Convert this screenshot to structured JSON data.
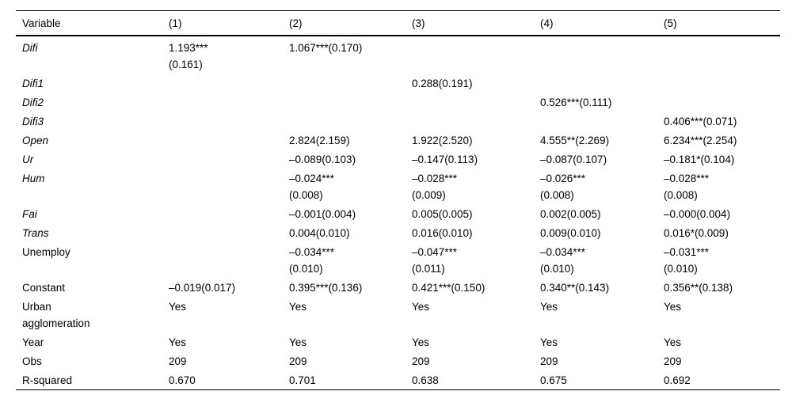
{
  "colors": {
    "text": "#000000",
    "background": "#ffffff",
    "rule": "#000000"
  },
  "table": {
    "columns": [
      "Variable",
      "(1)",
      "(2)",
      "(3)",
      "(4)",
      "(5)"
    ],
    "rows": [
      {
        "variable": "Difi",
        "italic": true,
        "cells": [
          "1.193***\n(0.161)",
          "1.067***(0.170)",
          "",
          "",
          ""
        ]
      },
      {
        "variable": "Difi1",
        "italic": true,
        "cells": [
          "",
          "",
          "0.288(0.191)",
          "",
          ""
        ]
      },
      {
        "variable": "Difi2",
        "italic": true,
        "cells": [
          "",
          "",
          "",
          "0.526***(0.111)",
          ""
        ]
      },
      {
        "variable": "Difi3",
        "italic": true,
        "cells": [
          "",
          "",
          "",
          "",
          "0.406***(0.071)"
        ]
      },
      {
        "variable": "Open",
        "italic": true,
        "cells": [
          "",
          "2.824(2.159)",
          "1.922(2.520)",
          "4.555**(2.269)",
          "6.234***(2.254)"
        ]
      },
      {
        "variable": "Ur",
        "italic": true,
        "cells": [
          "",
          "–0.089(0.103)",
          "–0.147(0.113)",
          "–0.087(0.107)",
          "–0.181*(0.104)"
        ]
      },
      {
        "variable": "Hum",
        "italic": true,
        "cells": [
          "",
          "–0.024***\n(0.008)",
          "–0.028***\n(0.009)",
          "–0.026***\n(0.008)",
          "–0.028***\n(0.008)"
        ]
      },
      {
        "variable": "Fai",
        "italic": true,
        "cells": [
          "",
          "–0.001(0.004)",
          "0.005(0.005)",
          "0.002(0.005)",
          "–0.000(0.004)"
        ]
      },
      {
        "variable": "Trans",
        "italic": true,
        "cells": [
          "",
          "0.004(0.010)",
          "0.016(0.010)",
          "0.009(0.010)",
          "0.016*(0.009)"
        ]
      },
      {
        "variable": "Unemploy",
        "italic": false,
        "cells": [
          "",
          "–0.034***\n(0.010)",
          "–0.047***\n(0.011)",
          "–0.034***\n(0.010)",
          "–0.031***\n(0.010)"
        ]
      },
      {
        "variable": "Constant",
        "italic": false,
        "cells": [
          "–0.019(0.017)",
          "0.395***(0.136)",
          "0.421***(0.150)",
          "0.340**(0.143)",
          "0.356**(0.138)"
        ]
      },
      {
        "variable": "Urban\nagglomeration",
        "italic": false,
        "cells": [
          "Yes",
          "Yes",
          "Yes",
          "Yes",
          "Yes"
        ]
      },
      {
        "variable": "Year",
        "italic": false,
        "cells": [
          "Yes",
          "Yes",
          "Yes",
          "Yes",
          "Yes"
        ]
      },
      {
        "variable": "Obs",
        "italic": false,
        "cells": [
          "209",
          "209",
          "209",
          "209",
          "209"
        ]
      },
      {
        "variable": "R-squared",
        "italic": false,
        "cells": [
          "0.670",
          "0.701",
          "0.638",
          "0.675",
          "0.692"
        ]
      }
    ]
  }
}
